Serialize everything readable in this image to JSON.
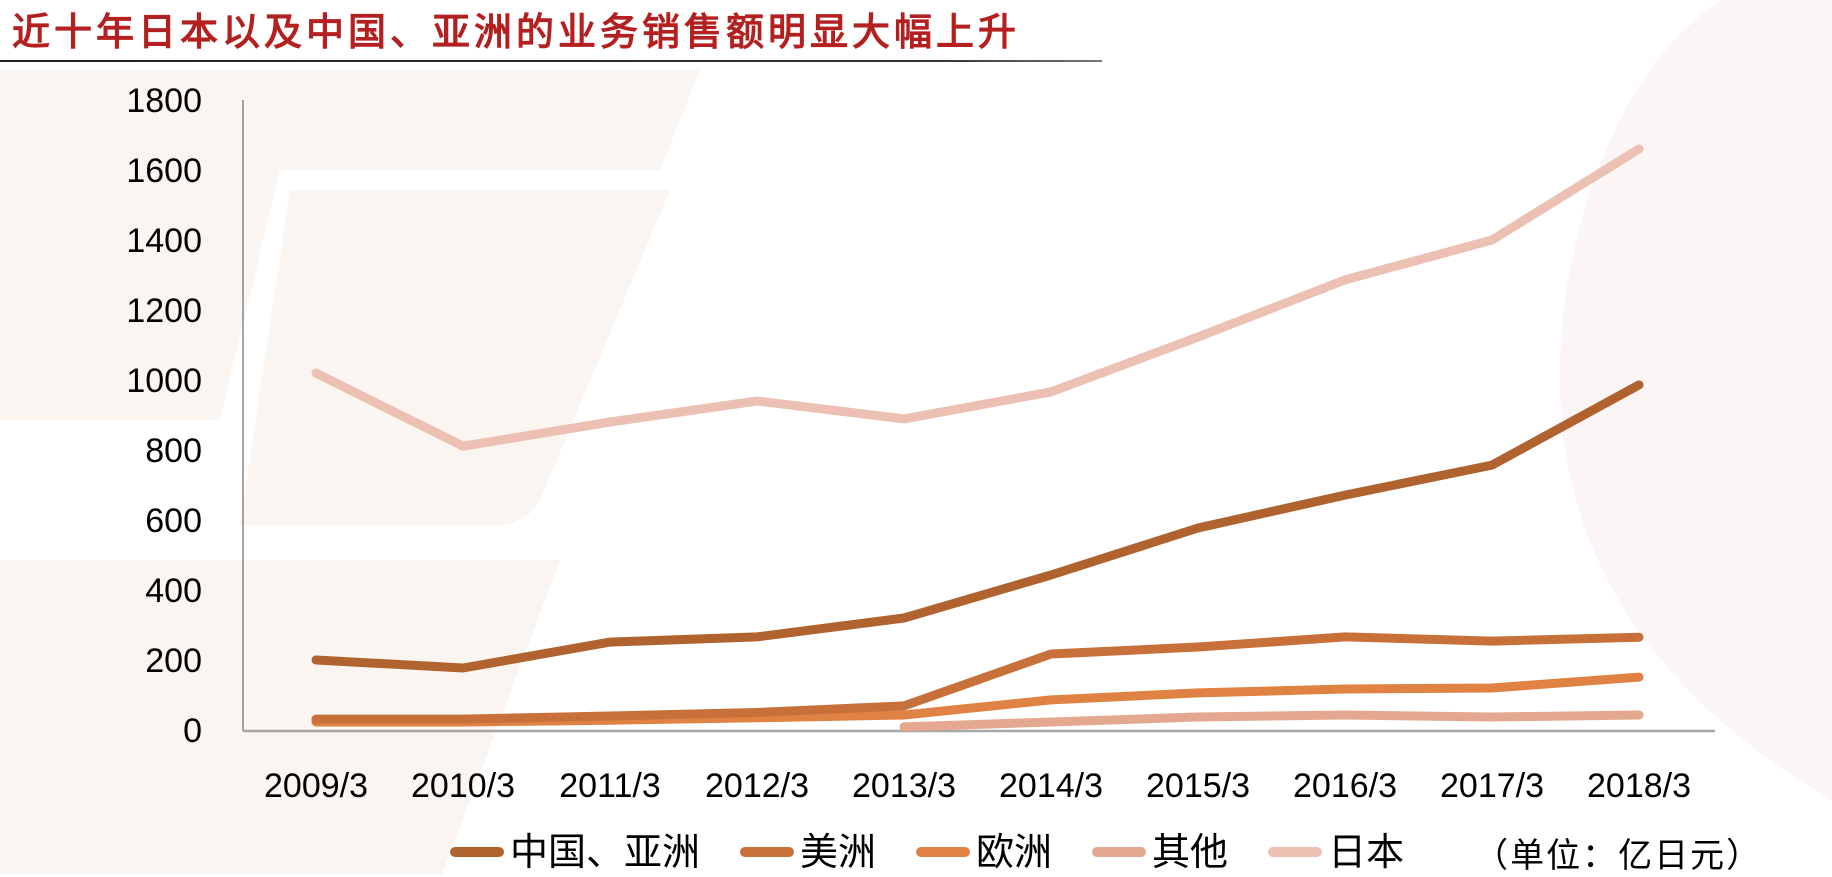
{
  "title": "近十年日本以及中国、亚洲的业务销售额明显大幅上升",
  "unit_note": "（单位：亿日元）",
  "colors": {
    "title": "#b3201f",
    "china_asia": "#b0632f",
    "americas": "#c8703a",
    "europe": "#e08243",
    "other": "#e3a88f",
    "japan": "#ecc0b2",
    "axis": "#a6a6a6",
    "bg_shape": "#faf5f0"
  },
  "legend": [
    {
      "key": "china_asia",
      "label": "中国、亚洲"
    },
    {
      "key": "americas",
      "label": "美洲"
    },
    {
      "key": "europe",
      "label": "欧洲"
    },
    {
      "key": "other",
      "label": "其他"
    },
    {
      "key": "japan",
      "label": "日本"
    }
  ],
  "chart_data": {
    "type": "line",
    "title": "近十年日本以及中国、亚洲的业务销售额明显大幅上升",
    "xlabel": "",
    "ylabel": "",
    "unit": "亿日元",
    "categories": [
      "2009/3",
      "2010/3",
      "2011/3",
      "2012/3",
      "2013/3",
      "2014/3",
      "2015/3",
      "2016/3",
      "2017/3",
      "2018/3"
    ],
    "yticks": [
      0,
      200,
      400,
      600,
      800,
      1000,
      1200,
      1400,
      1600,
      1800
    ],
    "ylim": [
      0,
      1800
    ],
    "grid": false,
    "legend_position": "bottom",
    "series": [
      {
        "key": "china_asia",
        "name": "中国、亚洲",
        "values": [
          200,
          177,
          251,
          266,
          320,
          443,
          577,
          671,
          757,
          986
        ]
      },
      {
        "key": "americas",
        "name": "美洲",
        "values": [
          31,
          31,
          40,
          50,
          69,
          217,
          237,
          266,
          254,
          265
        ]
      },
      {
        "key": "europe",
        "name": "欧洲",
        "values": [
          23,
          23,
          28,
          35,
          43,
          86,
          106,
          117,
          120,
          151
        ]
      },
      {
        "key": "other",
        "name": "其他",
        "values": [
          null,
          null,
          null,
          null,
          9,
          23,
          37,
          43,
          37,
          43
        ]
      },
      {
        "key": "japan",
        "name": "日本",
        "values": [
          1020,
          811,
          880,
          940,
          889,
          966,
          1123,
          1286,
          1400,
          1660
        ]
      }
    ]
  }
}
